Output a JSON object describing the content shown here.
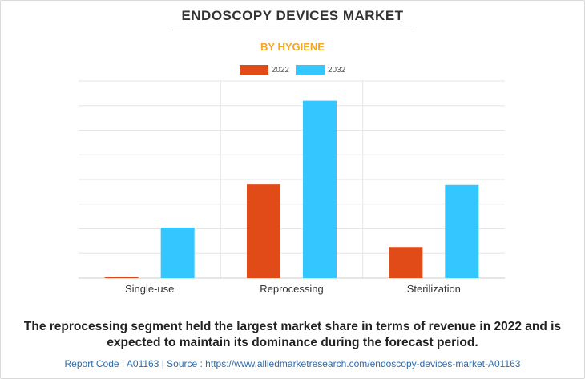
{
  "chart_data": {
    "type": "bar",
    "title": "ENDOSCOPY DEVICES MARKET",
    "subtitle": "BY HYGIENE",
    "categories": [
      "Single-use",
      "Reprocessing",
      "Sterilization"
    ],
    "series": [
      {
        "name": "2022",
        "values": [
          0.2,
          38,
          12.6
        ],
        "color": "#e04b17"
      },
      {
        "name": "2032",
        "values": [
          20.5,
          72,
          37.8
        ],
        "color": "#33c6ff"
      }
    ],
    "ylim": [
      0,
      80
    ],
    "xlabel": "",
    "ylabel": "",
    "grid": true,
    "legend": "top-center"
  },
  "caption": "The reprocessing segment held the largest market share in terms of revenue in 2022 and is expected to maintain its dominance during the forecast period.",
  "footer": "Report Code : A01163  |  Source : https://www.alliedmarketresearch.com/endoscopy-devices-market-A01163"
}
